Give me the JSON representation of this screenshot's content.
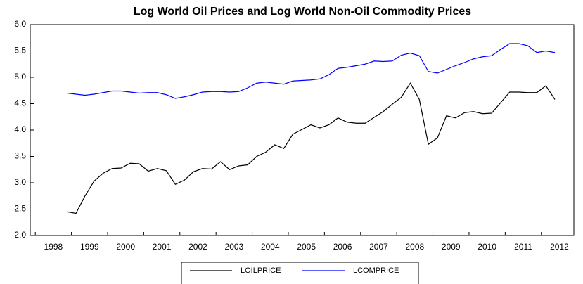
{
  "chart_data": {
    "type": "line",
    "title": "Log World Oil Prices and Log World Non-Oil Commodity Prices",
    "x": [
      1998.875,
      1999.125,
      1999.375,
      1999.625,
      1999.875,
      2000.125,
      2000.375,
      2000.625,
      2000.875,
      2001.125,
      2001.375,
      2001.625,
      2001.875,
      2002.125,
      2002.375,
      2002.625,
      2002.875,
      2003.125,
      2003.375,
      2003.625,
      2003.875,
      2004.125,
      2004.375,
      2004.625,
      2004.875,
      2005.125,
      2005.375,
      2005.625,
      2005.875,
      2006.125,
      2006.375,
      2006.625,
      2006.875,
      2007.125,
      2007.375,
      2007.625,
      2007.875,
      2008.125,
      2008.375,
      2008.625,
      2008.875,
      2009.125,
      2009.375,
      2009.625,
      2009.875,
      2010.125,
      2010.375,
      2010.625,
      2010.875,
      2011.125,
      2011.375,
      2011.625,
      2011.875,
      2012.125,
      2012.375
    ],
    "series": [
      {
        "name": "LOILPRICE",
        "color": "#000000",
        "values": [
          2.45,
          2.42,
          2.75,
          3.03,
          3.18,
          3.27,
          3.28,
          3.37,
          3.36,
          3.22,
          3.27,
          3.23,
          2.97,
          3.05,
          3.21,
          3.27,
          3.26,
          3.4,
          3.25,
          3.32,
          3.34,
          3.5,
          3.58,
          3.72,
          3.65,
          3.92,
          4.01,
          4.1,
          4.04,
          4.1,
          4.23,
          4.15,
          4.13,
          4.13,
          4.24,
          4.35,
          4.49,
          4.62,
          4.89,
          4.58,
          3.73,
          3.85,
          4.27,
          4.23,
          4.33,
          4.35,
          4.31,
          4.32,
          4.52,
          4.72,
          4.72,
          4.71,
          4.71,
          4.84,
          4.58
        ]
      },
      {
        "name": "LCOMPRICE",
        "color": "#0000ff",
        "values": [
          4.7,
          4.68,
          4.66,
          4.68,
          4.71,
          4.74,
          4.74,
          4.72,
          4.7,
          4.71,
          4.71,
          4.67,
          4.6,
          4.63,
          4.67,
          4.72,
          4.73,
          4.73,
          4.72,
          4.73,
          4.8,
          4.89,
          4.91,
          4.89,
          4.87,
          4.93,
          4.94,
          4.95,
          4.97,
          5.05,
          5.17,
          5.19,
          5.22,
          5.25,
          5.31,
          5.3,
          5.31,
          5.42,
          5.46,
          5.41,
          5.11,
          5.08,
          5.15,
          5.22,
          5.28,
          5.35,
          5.39,
          5.41,
          5.53,
          5.64,
          5.64,
          5.6,
          5.47,
          5.5,
          5.47
        ]
      }
    ],
    "xlim": [
      1997.86,
      2012.9
    ],
    "xticks": [
      1998,
      1999,
      2000,
      2001,
      2002,
      2003,
      2004,
      2005,
      2006,
      2007,
      2008,
      2009,
      2010,
      2011,
      2012
    ],
    "ylim": [
      2,
      6
    ],
    "yticks": [
      {
        "value": 2,
        "label": "2.0"
      },
      {
        "value": 2.5,
        "label": "2.5"
      },
      {
        "value": 3,
        "label": "3.0"
      },
      {
        "value": 3.5,
        "label": "3.5"
      },
      {
        "value": 4,
        "label": "4.0"
      },
      {
        "value": 4.5,
        "label": "4.5"
      },
      {
        "value": 5,
        "label": "5.0"
      },
      {
        "value": 5.5,
        "label": "5.5"
      },
      {
        "value": 6,
        "label": "6.0"
      }
    ],
    "legend": "bottom"
  }
}
